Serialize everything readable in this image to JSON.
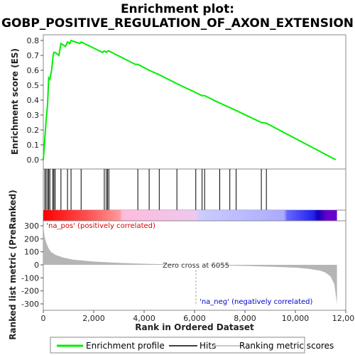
{
  "chart_data": {
    "type": "line",
    "title_line1": "Enrichment plot:",
    "title_line2": "GOBP_POSITIVE_REGULATION_OF_AXON_EXTENSION",
    "es_ylabel": "Enrichment score (ES)",
    "metric_ylabel": "Ranked list metric (PreRanked)",
    "xlabel": "Rank in Ordered Dataset",
    "xlim": [
      0,
      12000
    ],
    "x_ticks": [
      0,
      2000,
      4000,
      6000,
      8000,
      10000,
      12000
    ],
    "x_tick_labels": [
      "0",
      "2,000",
      "4,000",
      "6,000",
      "8,000",
      "10,000",
      "12,000"
    ],
    "es_ylim": [
      0,
      0.8
    ],
    "es_ticks": [
      0.0,
      0.1,
      0.2,
      0.3,
      0.4,
      0.5,
      0.6,
      0.7,
      0.8
    ],
    "es_tick_labels": [
      "0.0",
      "0.1",
      "0.2",
      "0.3",
      "0.4",
      "0.5",
      "0.6",
      "0.7",
      "0.8"
    ],
    "metric_ylim": [
      -300,
      300
    ],
    "metric_ticks": [
      -300,
      -200,
      -100,
      0,
      100,
      200,
      300
    ],
    "metric_tick_labels": [
      "-300",
      "-200",
      "-100",
      "0",
      "100",
      "200",
      "300"
    ],
    "enrichment_profile": {
      "x": [
        0,
        60,
        110,
        170,
        215,
        260,
        330,
        390,
        420,
        470,
        620,
        700,
        880,
        960,
        1050,
        1100,
        1450,
        1500,
        2350,
        2420,
        2500,
        2550,
        2600,
        3650,
        3750,
        4200,
        4600,
        5300,
        6050,
        6300,
        6400,
        7000,
        7400,
        7650,
        8650,
        8850,
        11600
      ],
      "y": [
        0.0,
        0.14,
        0.26,
        0.37,
        0.55,
        0.54,
        0.6,
        0.7,
        0.72,
        0.72,
        0.7,
        0.78,
        0.76,
        0.79,
        0.78,
        0.8,
        0.78,
        0.79,
        0.72,
        0.73,
        0.72,
        0.73,
        0.73,
        0.64,
        0.64,
        0.6,
        0.57,
        0.51,
        0.45,
        0.43,
        0.43,
        0.38,
        0.35,
        0.33,
        0.25,
        0.245,
        0.0
      ]
    },
    "hits": [
      60,
      110,
      170,
      215,
      260,
      380,
      420,
      470,
      700,
      960,
      1100,
      1500,
      2420,
      2500,
      2550,
      2600,
      3750,
      4200,
      4600,
      5300,
      6050,
      6300,
      6400,
      7000,
      7400,
      7650,
      8650,
      8850
    ],
    "ranked_metric": {
      "x": [
        0,
        50,
        100,
        200,
        300,
        500,
        800,
        1200,
        2000,
        3000,
        4000,
        5000,
        6055,
        7000,
        8000,
        9000,
        10000,
        10500,
        11000,
        11200,
        11400,
        11550,
        11650
      ],
      "y": [
        300,
        220,
        180,
        130,
        100,
        75,
        55,
        40,
        25,
        15,
        8,
        3,
        0,
        -4,
        -8,
        -14,
        -22,
        -30,
        -45,
        -60,
        -90,
        -150,
        -300
      ]
    },
    "zero_cross_label": "Zero cross at 6055",
    "pos_label": "'na_pos' (positively correlated)",
    "neg_label": "'na_neg' (negatively correlated)",
    "colors": {
      "profile": "#00ee00",
      "hits": "#000000",
      "metric_fill": "#b5b5b5",
      "pos_text": "#dd0000",
      "neg_text": "#0000cc"
    },
    "legend": [
      {
        "label": "Enrichment profile",
        "color": "#00ee00"
      },
      {
        "label": "Hits",
        "color": "#000000"
      },
      {
        "label": "Ranking metric scores",
        "color": "#b5b5b5"
      }
    ]
  }
}
